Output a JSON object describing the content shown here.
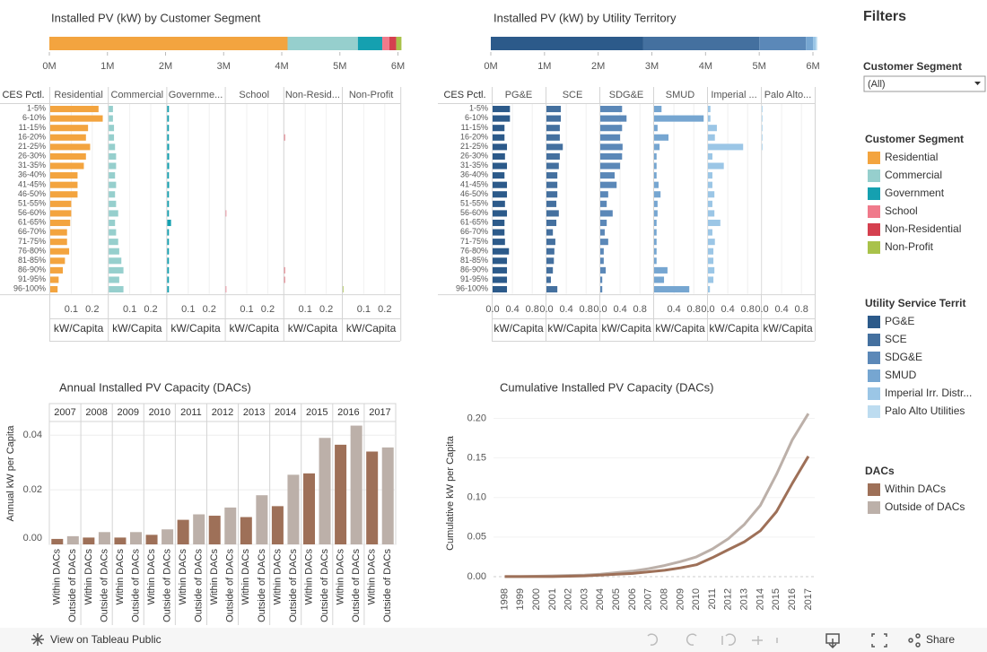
{
  "chart_data": [
    {
      "type": "stacked_bar_h",
      "title": "Installed PV (kW) by Customer Segment",
      "series": [
        {
          "name": "Residential",
          "color": "#f3a43f",
          "values": [
            4100000
          ]
        },
        {
          "name": "Commercial",
          "color": "#96cfcd",
          "values": [
            1210000
          ]
        },
        {
          "name": "Government",
          "color": "#15a0b0",
          "values": [
            420000
          ]
        },
        {
          "name": "School",
          "color": "#f07a8b",
          "values": [
            120000
          ]
        },
        {
          "name": "Non-Residential",
          "color": "#d5404f",
          "values": [
            120000
          ]
        },
        {
          "name": "Non-Profit",
          "color": "#a9c24a",
          "values": [
            90000
          ]
        }
      ],
      "xlim": [
        0,
        6100000
      ],
      "xticks": [
        {
          "value": 0,
          "label": "0M"
        },
        {
          "value": 1000000,
          "label": "1M"
        },
        {
          "value": 2000000,
          "label": "2M"
        },
        {
          "value": 3000000,
          "label": "3M"
        },
        {
          "value": 4000000,
          "label": "4M"
        },
        {
          "value": 5000000,
          "label": "5M"
        },
        {
          "value": 6000000,
          "label": "6M"
        }
      ]
    },
    {
      "type": "stacked_bar_h",
      "title": "Installed PV (kW) by Utility Territory",
      "series": [
        {
          "name": "PG&E",
          "color": "#2c5a8a",
          "values": [
            2840000
          ]
        },
        {
          "name": "SCE",
          "color": "#44709f",
          "values": [
            2160000
          ]
        },
        {
          "name": "SDG&E",
          "color": "#5b88b8",
          "values": [
            870000
          ]
        },
        {
          "name": "SMUD",
          "color": "#76a6d1",
          "values": [
            130000
          ]
        },
        {
          "name": "Imperial Irr. Distr...",
          "color": "#9bc6e6",
          "values": [
            50000
          ]
        },
        {
          "name": "Palo Alto Utilities",
          "color": "#bddcf0",
          "values": [
            30000
          ]
        }
      ],
      "xlim": [
        0,
        6100000
      ],
      "xticks": [
        {
          "value": 0,
          "label": "0M"
        },
        {
          "value": 1000000,
          "label": "1M"
        },
        {
          "value": 2000000,
          "label": "2M"
        },
        {
          "value": 3000000,
          "label": "3M"
        },
        {
          "value": 4000000,
          "label": "4M"
        },
        {
          "value": 5000000,
          "label": "5M"
        },
        {
          "value": 6000000,
          "label": "6M"
        }
      ]
    },
    {
      "type": "small_multiples",
      "row_header": "CES Pctl.",
      "x_label": "kW/Capita",
      "categories": [
        "1-5%",
        "6-10%",
        "11-15%",
        "16-20%",
        "21-25%",
        "26-30%",
        "31-35%",
        "36-40%",
        "41-45%",
        "46-50%",
        "51-55%",
        "56-60%",
        "61-65%",
        "66-70%",
        "71-75%",
        "76-80%",
        "81-85%",
        "86-90%",
        "91-95%",
        "96-100%"
      ],
      "xlim": [
        0,
        0.27
      ],
      "xticks": [
        0.1,
        0.2
      ],
      "panels": [
        {
          "label": "Residential",
          "values": [
            0.23,
            0.25,
            0.18,
            0.17,
            0.19,
            0.17,
            0.16,
            0.13,
            0.13,
            0.13,
            0.1,
            0.1,
            0.095,
            0.08,
            0.08,
            0.09,
            0.07,
            0.06,
            0.04,
            0.035
          ]
        },
        {
          "label": "Commercial",
          "values": [
            0.02,
            0.02,
            0.025,
            0.025,
            0.03,
            0.035,
            0.035,
            0.03,
            0.035,
            0.03,
            0.035,
            0.045,
            0.03,
            0.035,
            0.045,
            0.05,
            0.06,
            0.07,
            0.05,
            0.07
          ]
        },
        {
          "label": "Governme...",
          "values": [
            0.008,
            0.008,
            0.008,
            0.008,
            0.009,
            0.009,
            0.009,
            0.008,
            0.009,
            0.008,
            0.008,
            0.008,
            0.018,
            0.008,
            0.008,
            0.008,
            0.008,
            0.008,
            0.008,
            0.008
          ]
        },
        {
          "label": "School",
          "values": [
            0,
            0,
            0,
            0,
            0,
            0,
            0,
            0,
            0,
            0,
            0,
            0.003,
            0,
            0,
            0,
            0,
            0,
            0,
            0,
            0.003
          ]
        },
        {
          "label": "Non-Resid...",
          "values": [
            0,
            0,
            0,
            0.003,
            0,
            0,
            0,
            0,
            0,
            0,
            0,
            0,
            0,
            0,
            0,
            0,
            0,
            0.003,
            0.003,
            0
          ]
        },
        {
          "label": "Non-Profit",
          "values": [
            0,
            0,
            0,
            0,
            0,
            0,
            0,
            0,
            0,
            0,
            0,
            0,
            0,
            0,
            0,
            0,
            0,
            0,
            0,
            0.003
          ]
        }
      ]
    },
    {
      "type": "small_multiples",
      "row_header": "CES Pctl.",
      "x_label": "kW/Capita",
      "categories": [
        "1-5%",
        "6-10%",
        "11-15%",
        "16-20%",
        "21-25%",
        "26-30%",
        "31-35%",
        "36-40%",
        "41-45%",
        "46-50%",
        "51-55%",
        "56-60%",
        "61-65%",
        "66-70%",
        "71-75%",
        "76-80%",
        "81-85%",
        "86-90%",
        "91-95%",
        "96-100%"
      ],
      "xlim": [
        0,
        1.05
      ],
      "panels": [
        {
          "label": "PG&E",
          "xticks": [
            {
              "value": 0,
              "label": "0.0"
            },
            0.4,
            0.8
          ],
          "values": [
            0.35,
            0.35,
            0.24,
            0.24,
            0.29,
            0.25,
            0.29,
            0.24,
            0.29,
            0.29,
            0.25,
            0.29,
            0.24,
            0.24,
            0.25,
            0.33,
            0.29,
            0.29,
            0.29,
            0.29
          ]
        },
        {
          "label": "SCE",
          "xticks": [
            {
              "value": 0,
              "label": "0.0"
            },
            0.4,
            0.8
          ],
          "values": [
            0.29,
            0.29,
            0.27,
            0.27,
            0.33,
            0.27,
            0.25,
            0.22,
            0.22,
            0.22,
            0.2,
            0.25,
            0.2,
            0.13,
            0.18,
            0.16,
            0.15,
            0.13,
            0.09,
            0.22
          ]
        },
        {
          "label": "SDG&E",
          "xticks": [
            {
              "value": 0,
              "label": "0.0"
            },
            0.4,
            0.8
          ],
          "values": [
            0.44,
            0.53,
            0.44,
            0.4,
            0.45,
            0.44,
            0.4,
            0.29,
            0.33,
            0.16,
            0.13,
            0.25,
            0.13,
            0.09,
            0.16,
            0.07,
            0.07,
            0.11,
            0.04,
            0.04
          ]
        },
        {
          "label": "SMUD",
          "xticks": [
            0.4,
            0.8
          ],
          "values": [
            0.15,
            1.0,
            0.07,
            0.29,
            0.11,
            0.05,
            0.05,
            0.05,
            0.09,
            0.13,
            0.07,
            0.07,
            0.05,
            0.05,
            0.05,
            0.05,
            0.05,
            0.27,
            0.2,
            0.71
          ]
        },
        {
          "label": "Imperial ...",
          "xticks": [
            {
              "value": 0,
              "label": "0.0"
            },
            0.4,
            0.8
          ],
          "values": [
            0.05,
            0.05,
            0.18,
            0.14,
            0.71,
            0.09,
            0.32,
            0.09,
            0.09,
            0.13,
            0.09,
            0.13,
            0.25,
            0.09,
            0.14,
            0.11,
            0.11,
            0.13,
            0.11,
            0.04
          ]
        },
        {
          "label": "Palo Alto...",
          "xticks": [
            {
              "value": 0,
              "label": "0.0"
            },
            0.4,
            0.8
          ],
          "values": [
            0.02,
            0.02,
            0.02,
            0.02,
            0.02,
            0,
            0,
            0,
            0,
            0,
            0,
            0,
            0,
            0,
            0,
            0,
            0,
            0,
            0,
            0
          ]
        }
      ]
    },
    {
      "type": "grouped_bar",
      "title": "Annual Installed PV Capacity (DACs)",
      "ylabel": "Annual kW per Capita",
      "categories": [
        "2007",
        "2008",
        "2009",
        "2010",
        "2011",
        "2012",
        "2013",
        "2014",
        "2015",
        "2016",
        "2017"
      ],
      "series": [
        {
          "name": "Within DACs",
          "color": "#9e7058",
          "values": [
            0.002,
            0.0025,
            0.0025,
            0.0035,
            0.009,
            0.0105,
            0.01,
            0.014,
            0.026,
            0.0365,
            0.034
          ]
        },
        {
          "name": "Outside of DACs",
          "color": "#bcb0a9",
          "values": [
            0.003,
            0.0045,
            0.0045,
            0.0055,
            0.011,
            0.0135,
            0.018,
            0.0255,
            0.039,
            0.0435,
            0.0355
          ]
        }
      ],
      "ylim": [
        0,
        0.045
      ],
      "yticks": [
        {
          "value": 0,
          "label": "0.00"
        },
        {
          "value": 0.02,
          "label": "0.02"
        },
        {
          "value": 0.04,
          "label": "0.04"
        }
      ]
    },
    {
      "type": "line",
      "title": "Cumulative Installed PV Capacity (DACs)",
      "ylabel": "Cumulative kW per Capita",
      "x": [
        1998,
        1999,
        2000,
        2001,
        2002,
        2003,
        2004,
        2005,
        2006,
        2007,
        2008,
        2009,
        2010,
        2011,
        2012,
        2013,
        2014,
        2015,
        2016,
        2017
      ],
      "series": [
        {
          "name": "Within DACs",
          "color": "#9e7058",
          "values": [
            0,
            0,
            0,
            0,
            0.0005,
            0.001,
            0.002,
            0.003,
            0.004,
            0.006,
            0.008,
            0.011,
            0.015,
            0.024,
            0.034,
            0.044,
            0.058,
            0.082,
            0.118,
            0.152
          ]
        },
        {
          "name": "Outside of DACs",
          "color": "#bcb0a9",
          "values": [
            0,
            0,
            0.0005,
            0.001,
            0.0015,
            0.002,
            0.003,
            0.005,
            0.007,
            0.01,
            0.014,
            0.019,
            0.025,
            0.035,
            0.048,
            0.066,
            0.09,
            0.129,
            0.173,
            0.206
          ]
        }
      ],
      "xlim": [
        1997.3,
        2017.4
      ],
      "ylim": [
        -0.008,
        0.213
      ],
      "yticks": [
        {
          "value": 0,
          "label": "0.00"
        },
        {
          "value": 0.05,
          "label": "0.05"
        },
        {
          "value": 0.1,
          "label": "0.10"
        },
        {
          "value": 0.15,
          "label": "0.15"
        },
        {
          "value": 0.2,
          "label": "0.20"
        }
      ]
    }
  ],
  "filters": {
    "title": "Filters",
    "label": "Customer Segment",
    "value": "(All)"
  },
  "legends": {
    "customer_segment": "Customer Segment",
    "utility": "Utility Service Territ",
    "dacs": "DACs"
  },
  "footer": {
    "view": "View on Tableau Public",
    "share": "Share"
  }
}
